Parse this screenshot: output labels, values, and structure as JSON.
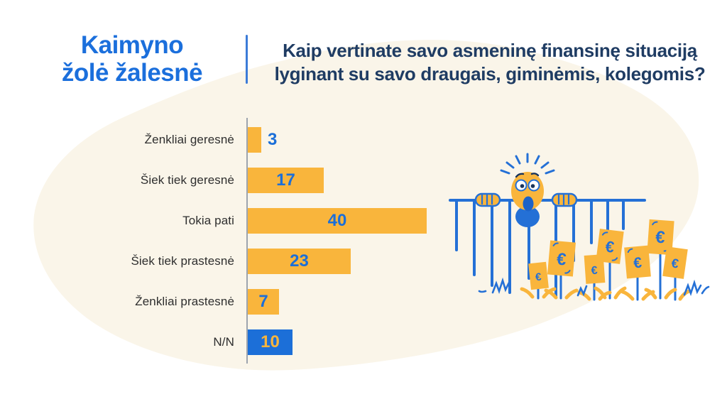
{
  "page": {
    "background_color": "#FFFFFF",
    "blob_color": "#FAF5E9"
  },
  "palette": {
    "brand_blue": "#1C6FD8",
    "title_blue": "#1B6FDC",
    "question_navy": "#1F3C63",
    "bar_yellow": "#F9B53C",
    "label_dark": "#2E2E2E",
    "axis_gray": "#9DA4AE",
    "divider_blue": "#3B7BD8"
  },
  "header": {
    "title_line1": "Kaimyno",
    "title_line2": "žolė žalesnė",
    "question_line1": "Kaip vertinate savo asmeninę finansinę situaciją",
    "question_line2": "lyginant su savo draugais, giminėmis, kolegomis?"
  },
  "chart_data": {
    "type": "bar",
    "orientation": "horizontal",
    "title": "",
    "xlabel": "",
    "ylabel": "",
    "grid": false,
    "legend": false,
    "xlim": [
      0,
      42
    ],
    "categories": [
      "Ženkliai geresnė",
      "Šiek tiek geresnė",
      "Tokia pati",
      "Šiek tiek prastesnė",
      "Ženkliai prastesnė",
      "N/N"
    ],
    "values": [
      3,
      17,
      40,
      23,
      7,
      10
    ],
    "highlight_category": "N/N",
    "bar_color_default": "#F9B53C",
    "bar_color_highlight": "#1C6FD8",
    "value_color_default": "#1C6FD8",
    "value_color_highlight": "#F9B53C"
  },
  "illustration": {
    "description": "surprised neighbor peeking over blue fence at euro-bill flowers",
    "euro_symbol": "€"
  }
}
